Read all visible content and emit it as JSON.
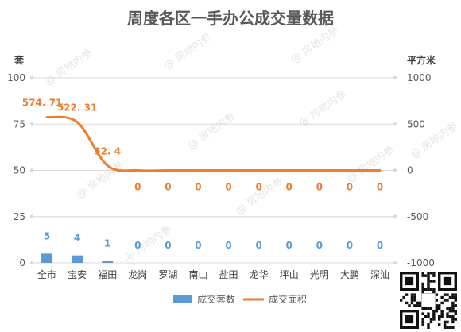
{
  "chart_data": {
    "type": "bar+line",
    "title": "周度各区一手办公成交量数据",
    "categories": [
      "全市",
      "宝安",
      "福田",
      "龙岗",
      "罗湖",
      "南山",
      "盐田",
      "龙华",
      "坪山",
      "光明",
      "大鹏",
      "深汕"
    ],
    "y_left": {
      "label": "套",
      "lim": [
        0,
        100
      ],
      "ticks": [
        0,
        25,
        50,
        75,
        100
      ],
      "tick_labels": [
        "0",
        "25",
        "50",
        "75",
        "100"
      ]
    },
    "y_right": {
      "label": "平方米",
      "lim": [
        -1000,
        1000
      ],
      "ticks": [
        -1000,
        -500,
        0,
        500,
        1000
      ],
      "tick_labels": [
        "-1000",
        "-500",
        "0",
        "500",
        "1000"
      ]
    },
    "series": [
      {
        "name": "成交套数",
        "type": "bar",
        "axis": "left",
        "color": "#5b9bd5",
        "values": [
          5,
          4,
          1,
          0,
          0,
          0,
          0,
          0,
          0,
          0,
          0,
          0
        ],
        "labels": [
          "5",
          "4",
          "1",
          "0",
          "0",
          "0",
          "0",
          "0",
          "0",
          "0",
          "0",
          "0"
        ]
      },
      {
        "name": "成交面积",
        "type": "line",
        "axis": "right",
        "color": "#ed7d31",
        "smooth": true,
        "values": [
          574.71,
          522.31,
          52.4,
          0,
          0,
          0,
          0,
          0,
          0,
          0,
          0,
          0
        ],
        "labels": [
          "574. 71",
          "522. 31",
          "52. 4",
          "0",
          "0",
          "0",
          "0",
          "0",
          "0",
          "0",
          "0",
          "0"
        ]
      }
    ],
    "grid": true,
    "legend": "bottom"
  },
  "watermark": "@ 房地内参",
  "qr_code": "qr-code"
}
